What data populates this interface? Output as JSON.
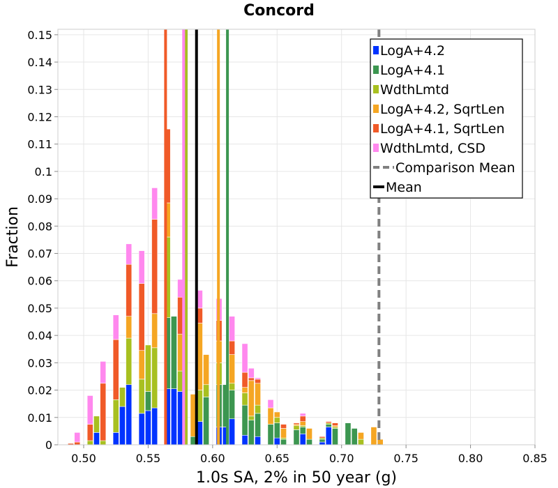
{
  "chart_data": {
    "type": "bar",
    "stacked": true,
    "title": "Concord",
    "xlabel": "1.0s SA, 2% in 50 year (g)",
    "ylabel": "Fraction",
    "xlim": [
      0.48,
      0.85
    ],
    "ylim": [
      0,
      0.152
    ],
    "grid": true,
    "legend_position": "top-right",
    "bin_width": 0.01,
    "x_ticks": [
      0.5,
      0.55,
      0.6,
      0.65,
      0.7,
      0.75,
      0.8,
      0.85
    ],
    "x_tick_labels": [
      "0.50",
      "0.55",
      "0.60",
      "0.65",
      "0.70",
      "0.75",
      "0.80",
      "0.85"
    ],
    "y_ticks": [
      0,
      0.01,
      0.02,
      0.03,
      0.04,
      0.05,
      0.06,
      0.07,
      0.08,
      0.09,
      0.1,
      0.11,
      0.12,
      0.13,
      0.14,
      0.15
    ],
    "y_tick_labels": [
      "0",
      "0.01",
      "0.02",
      "0.03",
      "0.04",
      "0.05",
      "0.06",
      "0.07",
      "0.08",
      "0.09",
      "0.1",
      "0.11",
      "0.12",
      "0.13",
      "0.14",
      "0.15"
    ],
    "bars": [
      {
        "x": 0.49,
        "stack": [
          0,
          0,
          0,
          0,
          0.0005,
          0
        ]
      },
      {
        "x": 0.495,
        "stack": [
          0,
          0,
          0,
          0,
          0.001,
          0.0035
        ]
      },
      {
        "x": 0.505,
        "stack": [
          0,
          0,
          0.0015,
          0,
          0.006,
          0.0105
        ]
      },
      {
        "x": 0.51,
        "stack": [
          0.0045,
          0,
          0.006,
          0,
          0,
          0
        ]
      },
      {
        "x": 0.515,
        "stack": [
          0,
          0,
          0.0015,
          0,
          0.021,
          0.008
        ]
      },
      {
        "x": 0.525,
        "stack": [
          0.0045,
          0,
          0.012,
          0,
          0.022,
          0.009
        ]
      },
      {
        "x": 0.53,
        "stack": [
          0.014,
          0,
          0.007,
          0,
          0,
          0
        ]
      },
      {
        "x": 0.535,
        "stack": [
          0.022,
          0,
          0.017,
          0.008,
          0.019,
          0.0075
        ]
      },
      {
        "x": 0.545,
        "stack": [
          0.0115,
          0,
          0.0125,
          0.0105,
          0.0245,
          0.012
        ]
      },
      {
        "x": 0.55,
        "stack": [
          0.0125,
          0.007,
          0.017,
          0,
          0,
          0
        ]
      },
      {
        "x": 0.555,
        "stack": [
          0.0135,
          0,
          0.022,
          0.0125,
          0.0345,
          0.0115
        ]
      },
      {
        "x": 0.565,
        "stack": [
          0.0205,
          0.026,
          0.0295,
          0.0125,
          0.027,
          0
        ]
      },
      {
        "x": 0.57,
        "stack": [
          0.0205,
          0.0265,
          0,
          0,
          0,
          0.0
        ]
      },
      {
        "x": 0.575,
        "stack": [
          0.0195,
          0,
          0.0075,
          0.0135,
          0.0135,
          0.0065
        ]
      },
      {
        "x": 0.585,
        "stack": [
          0,
          0.003,
          0,
          0.0155,
          0,
          0
        ]
      },
      {
        "x": 0.59,
        "stack": [
          0.0085,
          0,
          0.0115,
          0.0245,
          0.0055,
          0.0065
        ]
      },
      {
        "x": 0.595,
        "stack": [
          0,
          0.0175,
          0.0045,
          0.011,
          0,
          0
        ]
      },
      {
        "x": 0.605,
        "stack": [
          0.0065,
          0.0155,
          0.008,
          0.008,
          0.0075,
          0.008
        ]
      },
      {
        "x": 0.61,
        "stack": [
          0.0065,
          0.0155,
          0,
          0,
          0,
          0
        ]
      },
      {
        "x": 0.615,
        "stack": [
          0.0095,
          0.0105,
          0.0025,
          0.0105,
          0.005,
          0.009
        ]
      },
      {
        "x": 0.625,
        "stack": [
          0.0035,
          0.011,
          0.0045,
          0.002,
          0.0055,
          0.0105
        ]
      },
      {
        "x": 0.63,
        "stack": [
          0,
          0.009,
          0.0015,
          0.013,
          0.001,
          0.0035
        ]
      },
      {
        "x": 0.635,
        "stack": [
          0.003,
          0.0085,
          0.003,
          0.008,
          0.0015,
          0.0005
        ]
      },
      {
        "x": 0.645,
        "stack": [
          0,
          0.0075,
          0,
          0.006,
          0,
          0.003
        ]
      },
      {
        "x": 0.65,
        "stack": [
          0.0025,
          0.0055,
          0.002,
          0.002,
          0,
          0
        ]
      },
      {
        "x": 0.655,
        "stack": [
          0,
          0.002,
          0.0005,
          0.0035,
          0.0015,
          0
        ]
      },
      {
        "x": 0.665,
        "stack": [
          0,
          0.0055,
          0.0015,
          0.0005,
          0.0005,
          0
        ]
      },
      {
        "x": 0.67,
        "stack": [
          0.004,
          0.0025,
          0.0005,
          0.0015,
          0.002,
          0.001
        ]
      },
      {
        "x": 0.675,
        "stack": [
          0,
          0.002,
          0,
          0.004,
          0,
          0
        ]
      },
      {
        "x": 0.685,
        "stack": [
          0.001,
          0.001,
          0.0005,
          0,
          0.0005,
          0
        ]
      },
      {
        "x": 0.69,
        "stack": [
          0.0065,
          0.001,
          0.0005,
          0,
          0.0005,
          0
        ]
      },
      {
        "x": 0.695,
        "stack": [
          0,
          0.006,
          0.0005,
          0.0005,
          0.001,
          0
        ]
      },
      {
        "x": 0.705,
        "stack": [
          0,
          0.008,
          0,
          0,
          0,
          0
        ]
      },
      {
        "x": 0.71,
        "stack": [
          0,
          0.006,
          0,
          0,
          0,
          0
        ]
      },
      {
        "x": 0.715,
        "stack": [
          0,
          0,
          0.002,
          0.0025,
          0,
          0
        ]
      },
      {
        "x": 0.725,
        "stack": [
          0,
          0,
          0,
          0.0065,
          0,
          0
        ]
      },
      {
        "x": 0.73,
        "stack": [
          0,
          0,
          0,
          0.002,
          0,
          0
        ]
      }
    ],
    "series": [
      {
        "name": "LogA+4.2",
        "color": "#0033ff",
        "mean": 0.5795
      },
      {
        "name": "LogA+4.1",
        "color": "#3c9650",
        "mean": 0.6115
      },
      {
        "name": "WdthLmtd",
        "color": "#a8c020",
        "mean": 0.5795
      },
      {
        "name": "LogA+4.2, SqrtLen",
        "color": "#f5a623",
        "mean": 0.6045
      },
      {
        "name": "LogA+4.1, SqrtLen",
        "color": "#f05a28",
        "mean": 0.5635
      },
      {
        "name": "WdthLmtd, CSD",
        "color": "#ff88ee",
        "mean": 0.5775
      }
    ],
    "comparison_mean": 0.729,
    "mean": 0.5875,
    "legend": [
      {
        "label": "LogA+4.2",
        "kind": "box",
        "color": "#0033ff"
      },
      {
        "label": "LogA+4.1",
        "kind": "box",
        "color": "#3c9650"
      },
      {
        "label": "WdthLmtd",
        "kind": "box",
        "color": "#a8c020"
      },
      {
        "label": "LogA+4.2, SqrtLen",
        "kind": "box",
        "color": "#f5a623"
      },
      {
        "label": "LogA+4.1, SqrtLen",
        "kind": "box",
        "color": "#f05a28"
      },
      {
        "label": "WdthLmtd, CSD",
        "kind": "box",
        "color": "#ff88ee"
      },
      {
        "label": "Comparison Mean",
        "kind": "dashed",
        "color": "#808080"
      },
      {
        "label": "Mean",
        "kind": "solid",
        "color": "#000000"
      }
    ]
  }
}
